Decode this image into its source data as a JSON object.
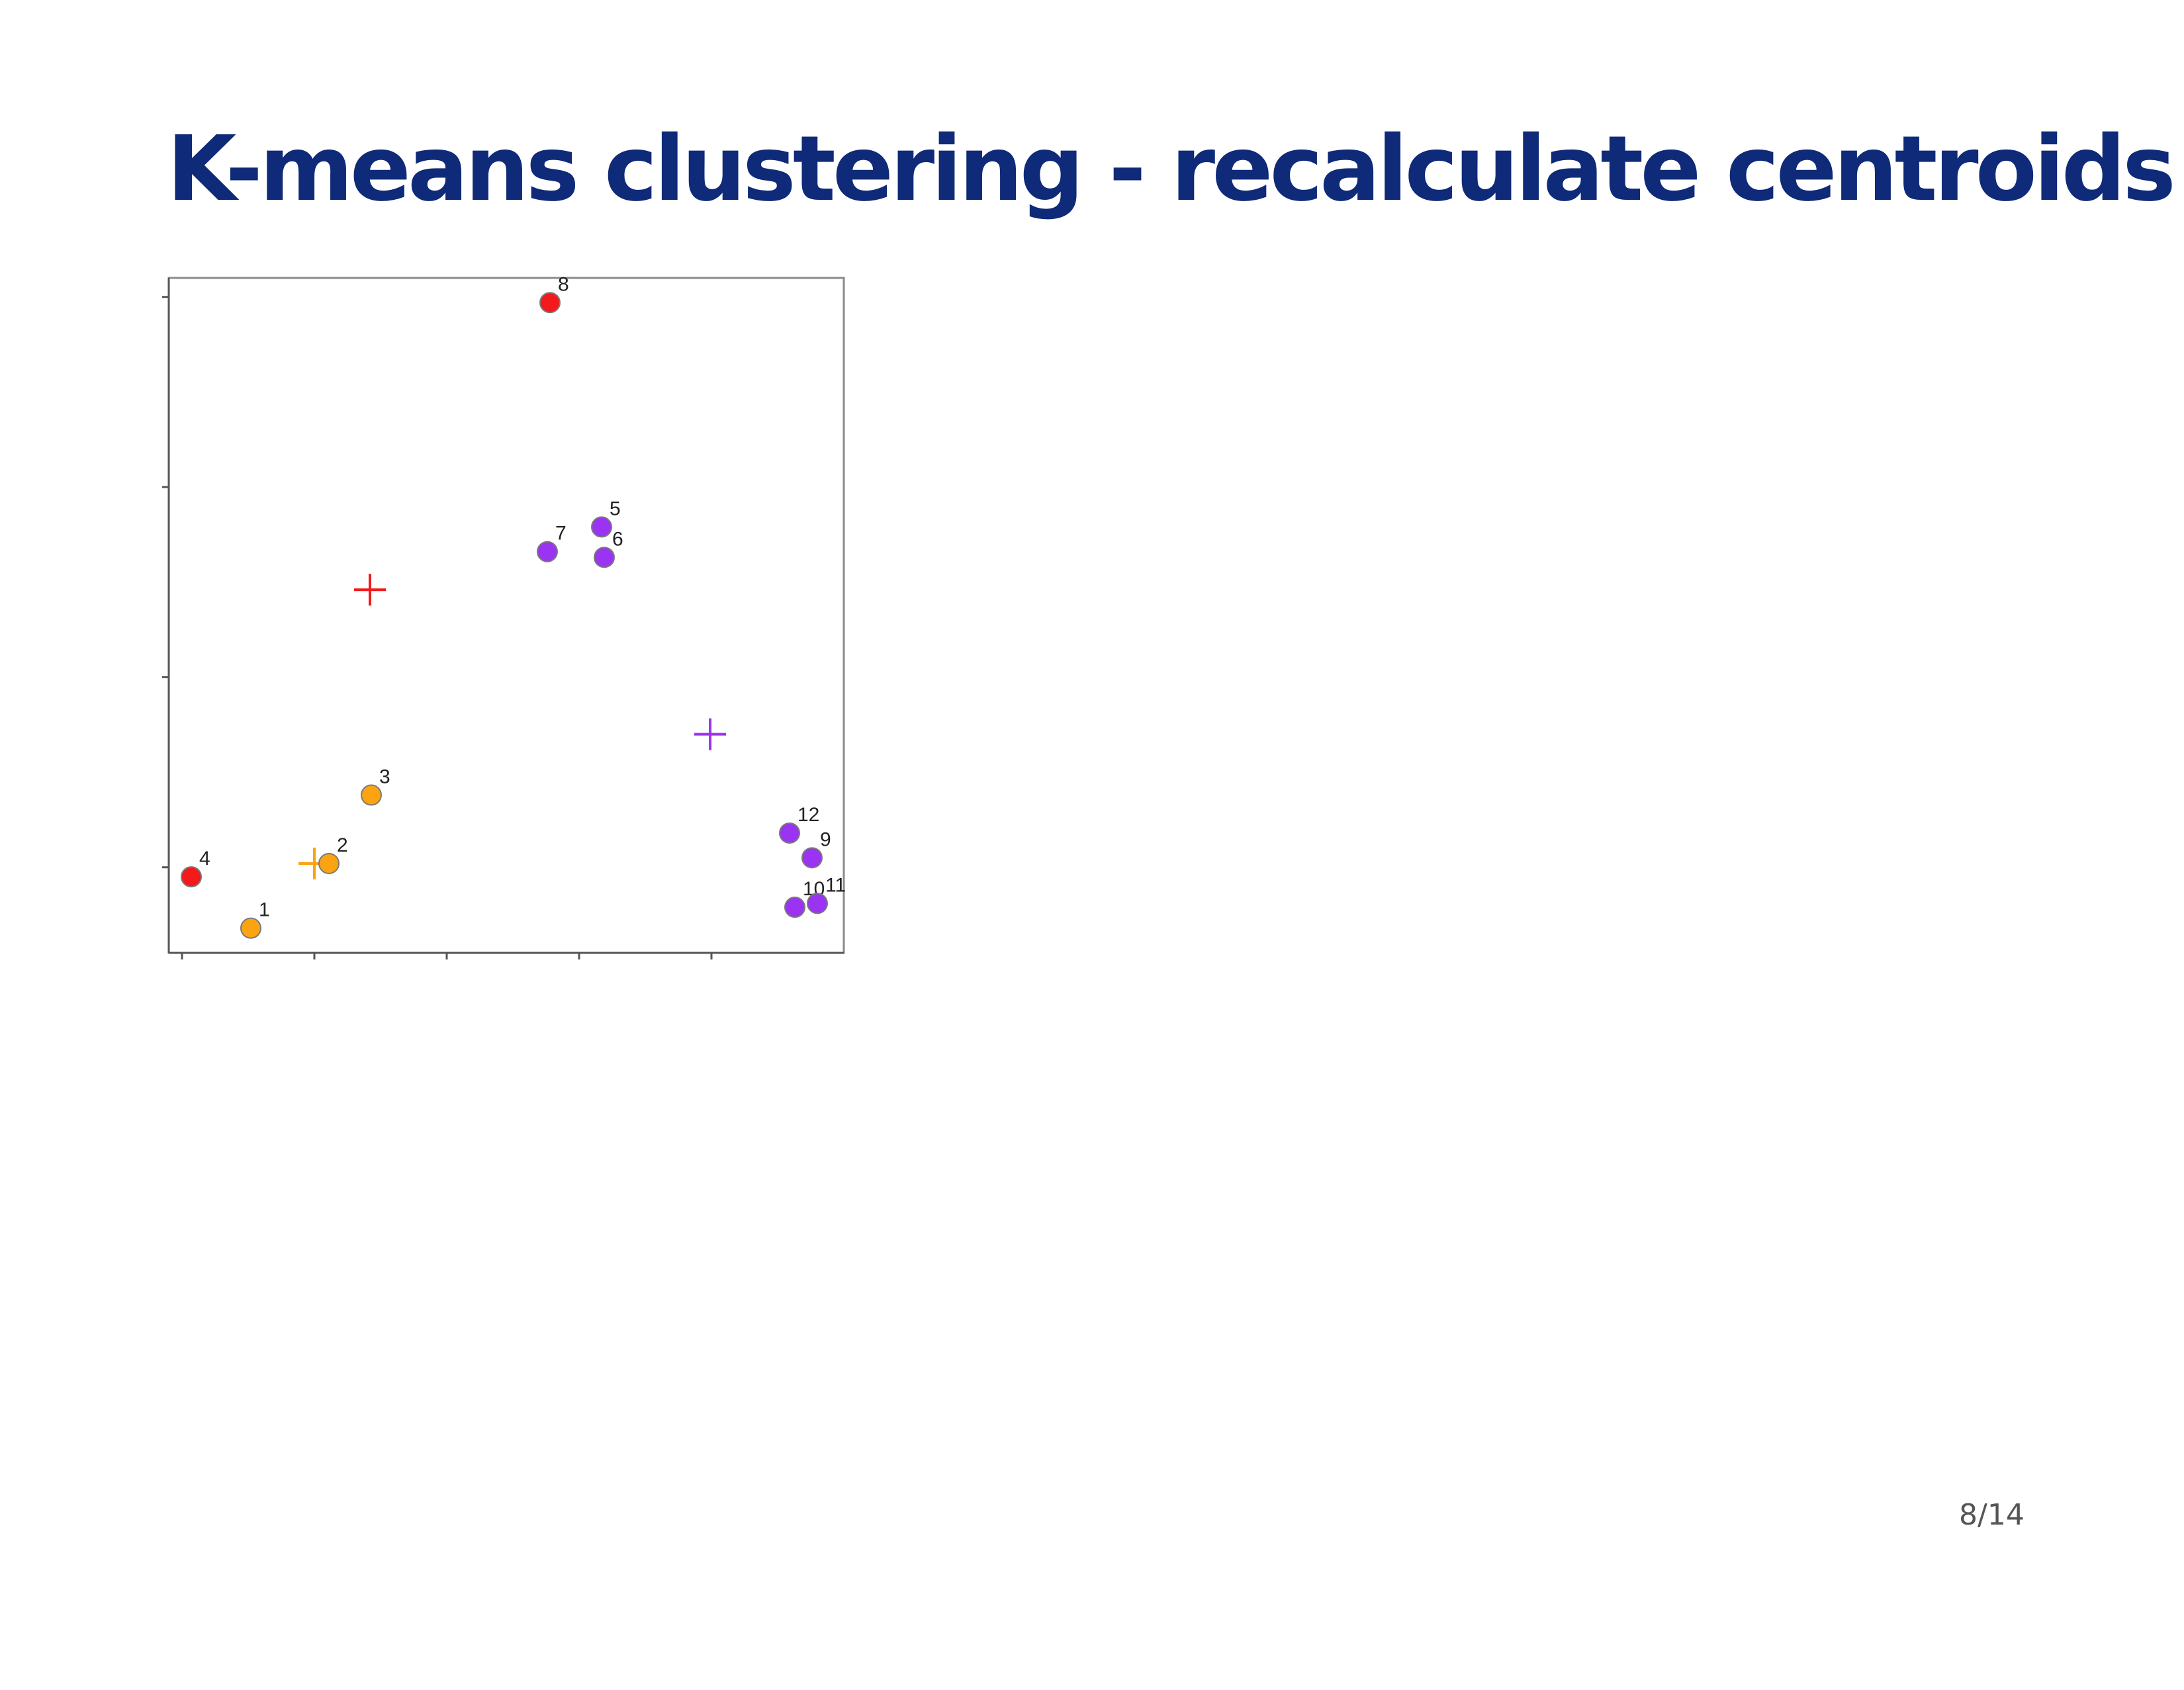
{
  "slide": {
    "title": "K-means clustering - recalculate centroids",
    "page_number": "8/14"
  },
  "chart_data": {
    "type": "scatter",
    "title": "",
    "xlabel": "",
    "ylabel": "",
    "xlim": [
      -0.1,
      5.0
    ],
    "ylim": [
      -0.45,
      3.1
    ],
    "xticks": [
      0,
      1,
      2,
      3,
      4
    ],
    "yticks": [
      0,
      1,
      2,
      3
    ],
    "grid": false,
    "colors": {
      "red": "#f21a1a",
      "orange": "#fca311",
      "purple": "#9b33f2"
    },
    "points": [
      {
        "label": "1",
        "x": 0.52,
        "y": -0.32,
        "cluster": "orange"
      },
      {
        "label": "2",
        "x": 1.11,
        "y": 0.02,
        "cluster": "orange"
      },
      {
        "label": "3",
        "x": 1.43,
        "y": 0.38,
        "cluster": "orange"
      },
      {
        "label": "4",
        "x": 0.07,
        "y": -0.05,
        "cluster": "red"
      },
      {
        "label": "5",
        "x": 3.17,
        "y": 1.79,
        "cluster": "purple"
      },
      {
        "label": "6",
        "x": 3.19,
        "y": 1.63,
        "cluster": "purple"
      },
      {
        "label": "7",
        "x": 2.76,
        "y": 1.66,
        "cluster": "purple"
      },
      {
        "label": "8",
        "x": 2.78,
        "y": 2.97,
        "cluster": "red"
      },
      {
        "label": "9",
        "x": 4.76,
        "y": 0.05,
        "cluster": "purple"
      },
      {
        "label": "10",
        "x": 4.63,
        "y": -0.21,
        "cluster": "purple"
      },
      {
        "label": "11",
        "x": 4.8,
        "y": -0.19,
        "cluster": "purple"
      },
      {
        "label": "12",
        "x": 4.59,
        "y": 0.18,
        "cluster": "purple"
      }
    ],
    "centroids": [
      {
        "x": 1.42,
        "y": 1.46,
        "cluster": "red"
      },
      {
        "x": 1.0,
        "y": 0.02,
        "cluster": "orange"
      },
      {
        "x": 3.99,
        "y": 0.7,
        "cluster": "purple"
      }
    ]
  }
}
